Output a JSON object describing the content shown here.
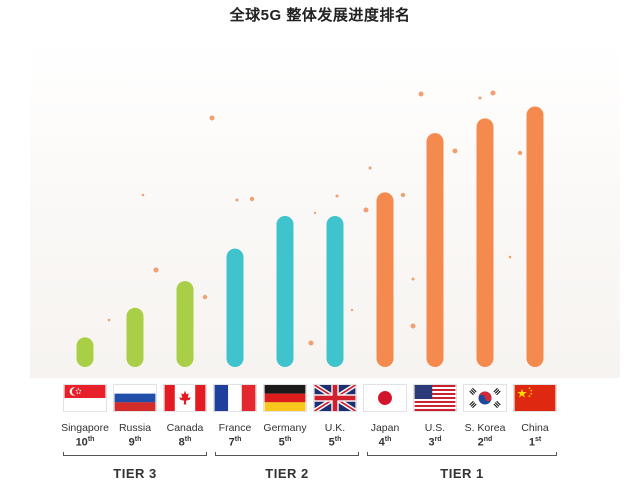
{
  "title": "全球5G 整体发展进度排名",
  "chart_data": {
    "type": "bar",
    "title": "全球5G 整体发展进度排名",
    "xlabel": "",
    "ylabel": "",
    "categories": [
      "Singapore",
      "Russia",
      "Canada",
      "France",
      "Germany",
      "U.K.",
      "Japan",
      "U.S.",
      "S. Korea",
      "China"
    ],
    "values": [
      10,
      20,
      29,
      40,
      51,
      51,
      59,
      79,
      84,
      88
    ],
    "ylim": [
      0,
      100
    ],
    "ranks": [
      {
        "num": "10",
        "suffix": "th"
      },
      {
        "num": "9",
        "suffix": "th"
      },
      {
        "num": "8",
        "suffix": "th"
      },
      {
        "num": "7",
        "suffix": "th"
      },
      {
        "num": "5",
        "suffix": "th"
      },
      {
        "num": "5",
        "suffix": "th"
      },
      {
        "num": "4",
        "suffix": "th"
      },
      {
        "num": "3",
        "suffix": "rd"
      },
      {
        "num": "2",
        "suffix": "nd"
      },
      {
        "num": "1",
        "suffix": "st"
      }
    ],
    "tiers": [
      {
        "label": "TIER 3",
        "members": [
          0,
          1,
          2
        ],
        "color": "#a8cf45"
      },
      {
        "label": "TIER 2",
        "members": [
          3,
          4,
          5
        ],
        "color": "#3fc3cc"
      },
      {
        "label": "TIER 1",
        "members": [
          6,
          7,
          8,
          9
        ],
        "color": "#f58a4e"
      }
    ],
    "grid": false,
    "legend": "none"
  },
  "colors": {
    "tier3": "#a8cf45",
    "tier2": "#3fc3cc",
    "tier1": "#f58a4e",
    "dots": "#f2a071"
  },
  "flags": [
    "singapore-flag",
    "russia-flag",
    "canada-flag",
    "france-flag",
    "germany-flag",
    "uk-flag",
    "japan-flag",
    "us-flag",
    "south-korea-flag",
    "china-flag"
  ]
}
